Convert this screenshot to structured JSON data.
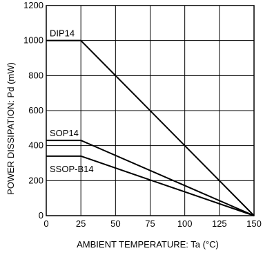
{
  "chart_data": {
    "type": "line",
    "title": "",
    "xlabel": "AMBIENT  TEMPERATURE: Ta (°C)",
    "ylabel": "POWER  DISSIPATION: Pd (mW)",
    "xlim": [
      0,
      150
    ],
    "ylim": [
      0,
      1200
    ],
    "xticks": [
      0,
      25,
      50,
      75,
      100,
      125,
      150
    ],
    "yticks": [
      0,
      200,
      400,
      600,
      800,
      1000,
      1200
    ],
    "grid": true,
    "series": [
      {
        "name": "DIP14",
        "x": [
          0,
          25,
          150
        ],
        "y": [
          1000,
          1000,
          0
        ]
      },
      {
        "name": "SOP14",
        "x": [
          0,
          25,
          150
        ],
        "y": [
          430,
          430,
          0
        ]
      },
      {
        "name": "SSOP-B14",
        "x": [
          0,
          25,
          150
        ],
        "y": [
          340,
          340,
          0
        ]
      }
    ]
  }
}
